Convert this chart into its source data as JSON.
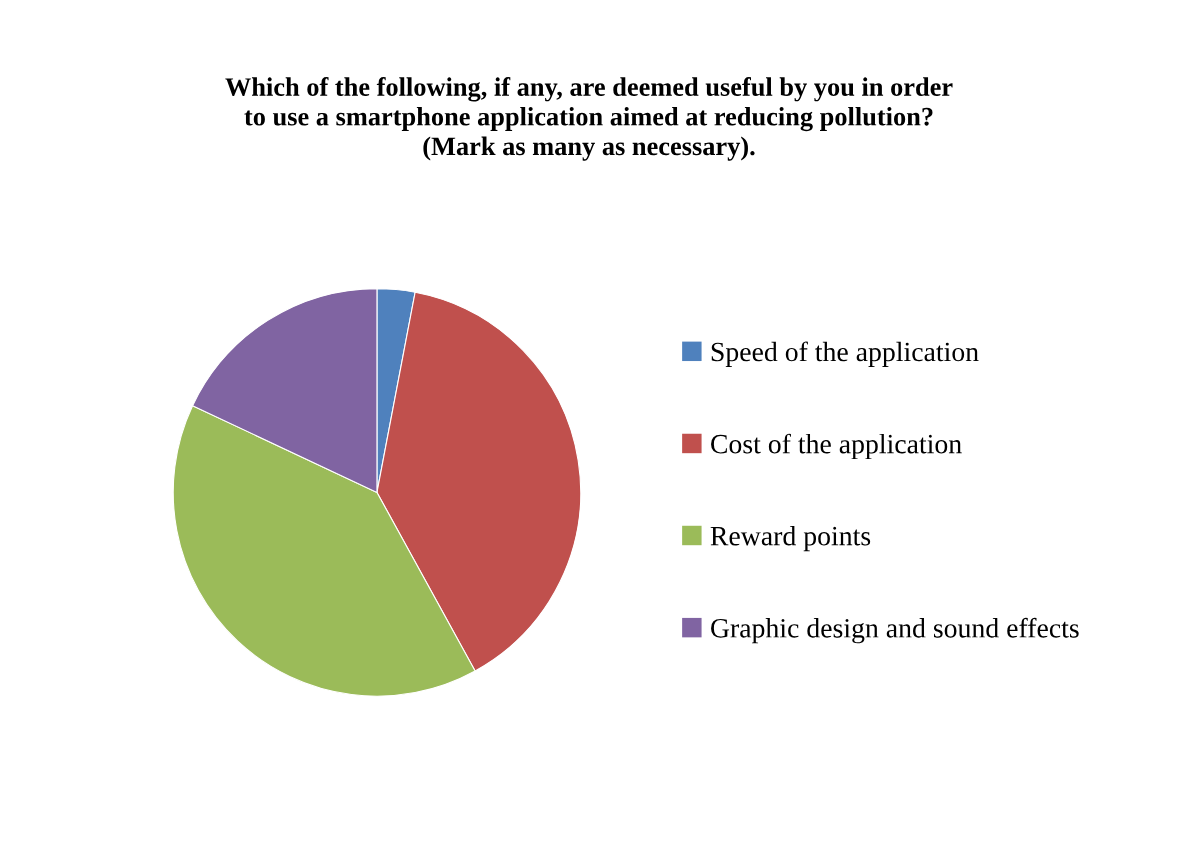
{
  "chart_data": {
    "type": "pie",
    "title": "Which of the following, if any, are deemed useful by you in order\nto use a smartphone application aimed at reducing pollution?\n(Mark as many as necessary).",
    "categories": [
      "Speed of the application",
      "Cost of the application",
      "Reward points",
      "Graphic design and sound effects"
    ],
    "values": [
      3,
      39,
      40,
      18
    ],
    "colors": [
      "#4f81bd",
      "#c0504d",
      "#9bbb59",
      "#8064a2"
    ],
    "legend": "right"
  }
}
